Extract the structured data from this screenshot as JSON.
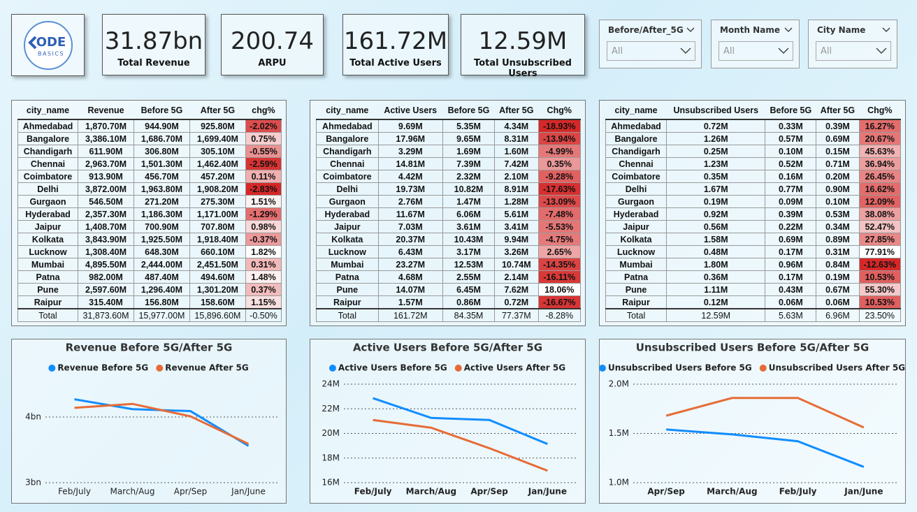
{
  "logo": {
    "mark": "ODE",
    "sub": "BASICS"
  },
  "kpis": [
    {
      "value": "31.87bn",
      "label": "Total Revenue"
    },
    {
      "value": "200.74",
      "label": "ARPU"
    },
    {
      "value": "161.72M",
      "label": "Total Active Users"
    },
    {
      "value": "12.59M",
      "label": "Total Unsubscribed Users"
    }
  ],
  "filters": [
    {
      "label": "Before/After_5G",
      "selected": "All"
    },
    {
      "label": "Month Name",
      "selected": "All"
    },
    {
      "label": "City Name",
      "selected": "All"
    }
  ],
  "tables": [
    {
      "columns": [
        "city_name",
        "Revenue",
        "Before 5G",
        "After 5G",
        "chg%"
      ],
      "rows": [
        [
          "Ahmedabad",
          "1,870.70M",
          "944.90M",
          "925.80M",
          "-2.02%"
        ],
        [
          "Bangalore",
          "3,386.10M",
          "1,686.70M",
          "1,699.40M",
          "0.75%"
        ],
        [
          "Chandigarh",
          "611.90M",
          "306.80M",
          "305.10M",
          "-0.55%"
        ],
        [
          "Chennai",
          "2,963.70M",
          "1,501.30M",
          "1,462.40M",
          "-2.59%"
        ],
        [
          "Coimbatore",
          "913.90M",
          "456.70M",
          "457.20M",
          "0.11%"
        ],
        [
          "Delhi",
          "3,872.00M",
          "1,963.80M",
          "1,908.20M",
          "-2.83%"
        ],
        [
          "Gurgaon",
          "546.50M",
          "271.20M",
          "275.30M",
          "1.51%"
        ],
        [
          "Hyderabad",
          "2,357.30M",
          "1,186.30M",
          "1,171.00M",
          "-1.29%"
        ],
        [
          "Jaipur",
          "1,408.70M",
          "700.90M",
          "707.80M",
          "0.98%"
        ],
        [
          "Kolkata",
          "3,843.90M",
          "1,925.50M",
          "1,918.40M",
          "-0.37%"
        ],
        [
          "Lucknow",
          "1,308.40M",
          "648.30M",
          "660.10M",
          "1.82%"
        ],
        [
          "Mumbai",
          "4,895.50M",
          "2,444.00M",
          "2,451.50M",
          "0.31%"
        ],
        [
          "Patna",
          "982.00M",
          "487.40M",
          "494.60M",
          "1.48%"
        ],
        [
          "Pune",
          "2,597.60M",
          "1,296.40M",
          "1,301.20M",
          "0.37%"
        ],
        [
          "Raipur",
          "315.40M",
          "156.80M",
          "158.60M",
          "1.15%"
        ]
      ],
      "total": [
        "Total",
        "31,873.60M",
        "15,977.00M",
        "15,896.60M",
        "-0.50%"
      ]
    },
    {
      "columns": [
        "city_name",
        "Active Users",
        "Before 5G",
        "After 5G",
        "Chg%"
      ],
      "rows": [
        [
          "Ahmedabad",
          "9.69M",
          "5.35M",
          "4.34M",
          "-18.93%"
        ],
        [
          "Bangalore",
          "17.96M",
          "9.65M",
          "8.31M",
          "-13.94%"
        ],
        [
          "Chandigarh",
          "3.29M",
          "1.69M",
          "1.60M",
          "-4.99%"
        ],
        [
          "Chennai",
          "14.81M",
          "7.39M",
          "7.42M",
          "0.35%"
        ],
        [
          "Coimbatore",
          "4.42M",
          "2.32M",
          "2.10M",
          "-9.28%"
        ],
        [
          "Delhi",
          "19.73M",
          "10.82M",
          "8.91M",
          "-17.63%"
        ],
        [
          "Gurgaon",
          "2.76M",
          "1.47M",
          "1.28M",
          "-13.09%"
        ],
        [
          "Hyderabad",
          "11.67M",
          "6.06M",
          "5.61M",
          "-7.48%"
        ],
        [
          "Jaipur",
          "7.03M",
          "3.61M",
          "3.41M",
          "-5.53%"
        ],
        [
          "Kolkata",
          "20.37M",
          "10.43M",
          "9.94M",
          "-4.75%"
        ],
        [
          "Lucknow",
          "6.43M",
          "3.17M",
          "3.26M",
          "2.65%"
        ],
        [
          "Mumbai",
          "23.27M",
          "12.53M",
          "10.74M",
          "-14.35%"
        ],
        [
          "Patna",
          "4.68M",
          "2.55M",
          "2.14M",
          "-16.11%"
        ],
        [
          "Pune",
          "14.07M",
          "6.45M",
          "7.62M",
          "18.06%"
        ],
        [
          "Raipur",
          "1.57M",
          "0.86M",
          "0.72M",
          "-16.67%"
        ]
      ],
      "total": [
        "Total",
        "161.72M",
        "84.35M",
        "77.37M",
        "-8.28%"
      ]
    },
    {
      "columns": [
        "city_name",
        "Unsubscribed Users",
        "Before 5G",
        "After 5G",
        "Chg%"
      ],
      "rows": [
        [
          "Ahmedabad",
          "0.72M",
          "0.33M",
          "0.39M",
          "16.27%"
        ],
        [
          "Bangalore",
          "1.26M",
          "0.57M",
          "0.69M",
          "20.67%"
        ],
        [
          "Chandigarh",
          "0.25M",
          "0.10M",
          "0.15M",
          "45.63%"
        ],
        [
          "Chennai",
          "1.23M",
          "0.52M",
          "0.71M",
          "36.94%"
        ],
        [
          "Coimbatore",
          "0.35M",
          "0.16M",
          "0.20M",
          "26.45%"
        ],
        [
          "Delhi",
          "1.67M",
          "0.77M",
          "0.90M",
          "16.62%"
        ],
        [
          "Gurgaon",
          "0.19M",
          "0.09M",
          "0.10M",
          "12.09%"
        ],
        [
          "Hyderabad",
          "0.92M",
          "0.39M",
          "0.53M",
          "38.08%"
        ],
        [
          "Jaipur",
          "0.56M",
          "0.22M",
          "0.34M",
          "52.47%"
        ],
        [
          "Kolkata",
          "1.58M",
          "0.69M",
          "0.89M",
          "27.85%"
        ],
        [
          "Lucknow",
          "0.48M",
          "0.17M",
          "0.31M",
          "77.91%"
        ],
        [
          "Mumbai",
          "1.80M",
          "0.96M",
          "0.84M",
          "-12.63%"
        ],
        [
          "Patna",
          "0.36M",
          "0.17M",
          "0.19M",
          "10.53%"
        ],
        [
          "Pune",
          "1.11M",
          "0.43M",
          "0.67M",
          "55.30%"
        ],
        [
          "Raipur",
          "0.12M",
          "0.06M",
          "0.06M",
          "10.53%"
        ]
      ],
      "total": [
        "Total",
        "12.59M",
        "5.63M",
        "6.96M",
        "23.50%"
      ]
    }
  ],
  "chart_data": [
    {
      "type": "line",
      "title": "Revenue Before 5G/After 5G",
      "categories": [
        "Feb/July",
        "March/Aug",
        "Apr/Sep",
        "Jan/June"
      ],
      "series": [
        {
          "name": "Revenue Before 5G",
          "color": "#118dff",
          "values": [
            4.27,
            4.12,
            4.09,
            3.56
          ]
        },
        {
          "name": "Revenue After 5G",
          "color": "#e66c37",
          "values": [
            4.14,
            4.2,
            4.01,
            3.59
          ]
        }
      ],
      "ylim": [
        3,
        4.5
      ],
      "yticks": [
        {
          "value": 3,
          "label": "3bn"
        },
        {
          "value": 4,
          "label": "4bn"
        }
      ],
      "grid": true
    },
    {
      "type": "line",
      "title": "Active Users Before 5G/After 5G",
      "categories": [
        "Feb/July",
        "March/Aug",
        "Apr/Sep",
        "Jan/June"
      ],
      "series": [
        {
          "name": "Active Users Before 5G",
          "color": "#118dff",
          "values": [
            22.86,
            21.26,
            21.09,
            19.14
          ]
        },
        {
          "name": "Active Users After 5G",
          "color": "#e66c37",
          "values": [
            21.09,
            20.46,
            18.8,
            16.97
          ]
        }
      ],
      "ylim": [
        16,
        24
      ],
      "yticks": [
        {
          "value": 16,
          "label": "16M"
        },
        {
          "value": 18,
          "label": "18M"
        },
        {
          "value": 20,
          "label": "20M"
        },
        {
          "value": 22,
          "label": "22M"
        },
        {
          "value": 24,
          "label": "24M"
        }
      ],
      "grid": true
    },
    {
      "type": "line",
      "title": "Unsubscribed Users Before 5G/After 5G",
      "categories": [
        "Apr/Sep",
        "March/Aug",
        "Feb/July",
        "Jan/June"
      ],
      "series": [
        {
          "name": "Unsubscribed Users Before 5G",
          "color": "#118dff",
          "values": [
            1.54,
            1.49,
            1.42,
            1.16
          ]
        },
        {
          "name": "Unsubscribed Users After 5G",
          "color": "#e66c37",
          "values": [
            1.68,
            1.86,
            1.86,
            1.56
          ]
        }
      ],
      "ylim": [
        1,
        2
      ],
      "yticks": [
        {
          "value": 1,
          "label": "1.0M"
        },
        {
          "value": 1.5,
          "label": "1.5M"
        },
        {
          "value": 2,
          "label": "2.0M"
        }
      ],
      "grid": true
    }
  ]
}
